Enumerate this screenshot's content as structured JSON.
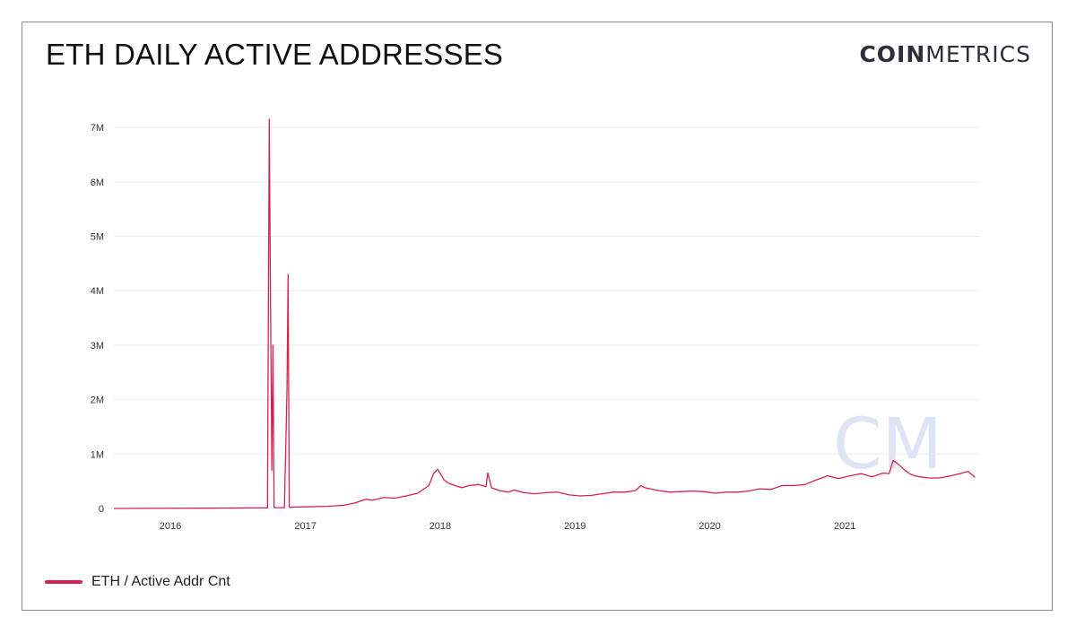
{
  "header": {
    "title": "ETH DAILY ACTIVE ADDRESSES",
    "brand_strong": "COIN",
    "brand_light": "METRICS"
  },
  "watermark": "CM",
  "colors": {
    "series": "#d6214f",
    "grid": "#ececec",
    "watermark": "#dfe4f5"
  },
  "legend": {
    "label": "ETH / Active Addr Cnt"
  },
  "chart_data": {
    "type": "line",
    "title": "ETH DAILY ACTIVE ADDRESSES",
    "xlabel": "",
    "ylabel": "",
    "x_range": [
      "2015-08-01",
      "2021-12-31"
    ],
    "ylim": [
      0,
      7200000
    ],
    "y_ticks": [
      0,
      1000000,
      2000000,
      3000000,
      4000000,
      5000000,
      6000000,
      7000000
    ],
    "y_tick_labels": [
      "0",
      "1M",
      "2M",
      "3M",
      "4M",
      "5M",
      "6M",
      "7M"
    ],
    "x_ticks": [
      "2016-01-01",
      "2017-01-01",
      "2018-01-01",
      "2019-01-01",
      "2020-01-01",
      "2021-01-01"
    ],
    "x_tick_labels": [
      "2016",
      "2017",
      "2018",
      "2019",
      "2020",
      "2021"
    ],
    "grid": true,
    "legend_position": "bottom-left",
    "series": [
      {
        "name": "ETH / Active Addr Cnt",
        "x": [
          "2015-08-01",
          "2015-12-01",
          "2016-04-01",
          "2016-08-01",
          "2016-09-20",
          "2016-09-25",
          "2016-09-28",
          "2016-10-02",
          "2016-10-05",
          "2016-10-08",
          "2016-10-12",
          "2016-10-18",
          "2016-11-05",
          "2016-11-12",
          "2016-11-15",
          "2016-11-18",
          "2016-11-20",
          "2016-11-23",
          "2016-11-28",
          "2017-01-01",
          "2017-03-01",
          "2017-04-15",
          "2017-05-15",
          "2017-06-01",
          "2017-06-15",
          "2017-07-01",
          "2017-08-01",
          "2017-09-01",
          "2017-10-01",
          "2017-11-01",
          "2017-12-01",
          "2017-12-15",
          "2017-12-25",
          "2018-01-05",
          "2018-01-12",
          "2018-01-25",
          "2018-02-15",
          "2018-03-01",
          "2018-03-20",
          "2018-04-15",
          "2018-05-05",
          "2018-05-10",
          "2018-05-20",
          "2018-06-10",
          "2018-07-05",
          "2018-07-20",
          "2018-08-15",
          "2018-09-15",
          "2018-10-15",
          "2018-11-15",
          "2018-12-15",
          "2019-01-15",
          "2019-02-15",
          "2019-03-15",
          "2019-04-15",
          "2019-05-15",
          "2019-06-15",
          "2019-06-28",
          "2019-07-10",
          "2019-08-15",
          "2019-09-15",
          "2019-10-15",
          "2019-11-15",
          "2019-12-15",
          "2020-01-15",
          "2020-02-15",
          "2020-03-15",
          "2020-04-15",
          "2020-05-15",
          "2020-06-15",
          "2020-07-15",
          "2020-08-15",
          "2020-09-15",
          "2020-10-15",
          "2020-11-15",
          "2020-12-15",
          "2021-01-15",
          "2021-02-15",
          "2021-03-15",
          "2021-04-15",
          "2021-05-01",
          "2021-05-12",
          "2021-05-25",
          "2021-06-10",
          "2021-06-25",
          "2021-07-10",
          "2021-07-25",
          "2021-08-15",
          "2021-09-15",
          "2021-10-15",
          "2021-11-15",
          "2021-12-01",
          "2021-12-20"
        ],
        "y": [
          0,
          2000,
          5000,
          10000,
          12000,
          7150000,
          4000000,
          700000,
          3000000,
          20000,
          15000,
          15000,
          15000,
          2200000,
          4300000,
          30000,
          20000,
          20000,
          25000,
          30000,
          40000,
          60000,
          100000,
          140000,
          170000,
          150000,
          200000,
          190000,
          230000,
          280000,
          420000,
          650000,
          720000,
          600000,
          520000,
          460000,
          410000,
          380000,
          420000,
          440000,
          400000,
          650000,
          380000,
          330000,
          300000,
          340000,
          290000,
          270000,
          290000,
          300000,
          250000,
          230000,
          240000,
          270000,
          300000,
          300000,
          330000,
          420000,
          380000,
          330000,
          300000,
          310000,
          320000,
          310000,
          280000,
          300000,
          300000,
          320000,
          360000,
          350000,
          420000,
          420000,
          440000,
          520000,
          600000,
          550000,
          600000,
          640000,
          580000,
          650000,
          640000,
          880000,
          820000,
          720000,
          640000,
          600000,
          580000,
          560000,
          560000,
          600000,
          650000,
          680000,
          570000
        ]
      }
    ]
  }
}
